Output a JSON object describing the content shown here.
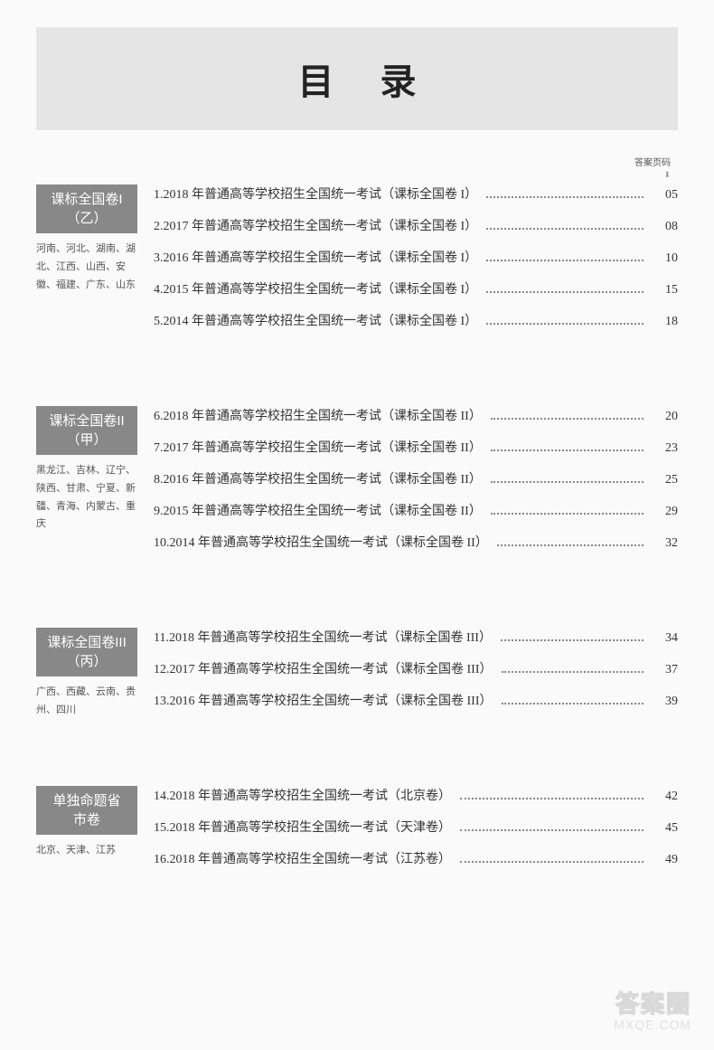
{
  "title": "目 录",
  "page_column_header": "答案页码",
  "sections": [
    {
      "badge_line1": "课标全国卷I",
      "badge_line2": "（乙）",
      "regions": "河南、河北、湖南、湖北、江西、山西、安徽、福建、广东、山东",
      "entries": [
        {
          "title": "1.2018 年普通高等学校招生全国统一考试（课标全国卷 I）",
          "page": "05"
        },
        {
          "title": "2.2017 年普通高等学校招生全国统一考试（课标全国卷 I）",
          "page": "08"
        },
        {
          "title": "3.2016 年普通高等学校招生全国统一考试（课标全国卷 I）",
          "page": "10"
        },
        {
          "title": "4.2015 年普通高等学校招生全国统一考试（课标全国卷 I）",
          "page": "15"
        },
        {
          "title": "5.2014 年普通高等学校招生全国统一考试（课标全国卷 I）",
          "page": "18"
        }
      ]
    },
    {
      "badge_line1": "课标全国卷II",
      "badge_line2": "（甲）",
      "regions": "黑龙江、吉林、辽宁、陕西、甘肃、宁夏、新疆、青海、内蒙古、重庆",
      "entries": [
        {
          "title": "6.2018 年普通高等学校招生全国统一考试（课标全国卷 II）",
          "page": "20"
        },
        {
          "title": "7.2017 年普通高等学校招生全国统一考试（课标全国卷 II）",
          "page": "23"
        },
        {
          "title": "8.2016 年普通高等学校招生全国统一考试（课标全国卷 II）",
          "page": "25"
        },
        {
          "title": "9.2015 年普通高等学校招生全国统一考试（课标全国卷 II）",
          "page": "29"
        },
        {
          "title": "10.2014 年普通高等学校招生全国统一考试（课标全国卷 II）",
          "page": "32"
        }
      ]
    },
    {
      "badge_line1": "课标全国卷III",
      "badge_line2": "（丙）",
      "regions": "广西、西藏、云南、贵州、四川",
      "entries": [
        {
          "title": "11.2018 年普通高等学校招生全国统一考试（课标全国卷 III）",
          "page": "34"
        },
        {
          "title": "12.2017 年普通高等学校招生全国统一考试（课标全国卷 III）",
          "page": "37"
        },
        {
          "title": "13.2016 年普通高等学校招生全国统一考试（课标全国卷 III）",
          "page": "39"
        }
      ]
    },
    {
      "badge_line1": "单独命题省",
      "badge_line2": "市卷",
      "regions": "北京、天津、江苏",
      "entries": [
        {
          "title": "14.2018 年普通高等学校招生全国统一考试（北京卷）",
          "page": "42"
        },
        {
          "title": "15.2018 年普通高等学校招生全国统一考试（天津卷）",
          "page": "45"
        },
        {
          "title": "16.2018 年普通高等学校招生全国统一考试（江苏卷）",
          "page": "49"
        }
      ]
    }
  ],
  "watermark_top": "答案圈",
  "watermark_bottom": "MXQE.COM"
}
